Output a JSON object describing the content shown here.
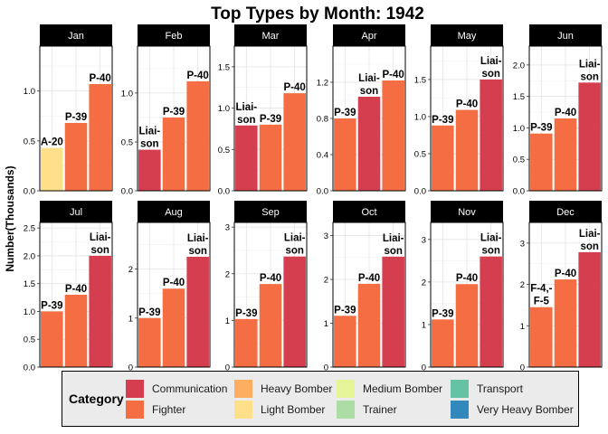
{
  "chart_data": {
    "type": "bar",
    "title": "Top Types by Month: 1942",
    "ylabel": "Number(Thousands)",
    "xlabel": "",
    "grid": true,
    "legend_position": "bottom",
    "legend": {
      "title": "Category",
      "entries": [
        {
          "name": "Communication",
          "color": "#d53e4f"
        },
        {
          "name": "Fighter",
          "color": "#f46d43"
        },
        {
          "name": "Heavy Bomber",
          "color": "#fdae61"
        },
        {
          "name": "Light Bomber",
          "color": "#fee08b"
        },
        {
          "name": "Medium Bomber",
          "color": "#e6f598"
        },
        {
          "name": "Trainer",
          "color": "#abdda4"
        },
        {
          "name": "Transport",
          "color": "#66c2a5"
        },
        {
          "name": "Very Heavy Bomber",
          "color": "#3288bd"
        }
      ]
    },
    "panels": [
      {
        "month": "Jan",
        "ylim": [
          0,
          1.45
        ],
        "ticks": [
          "0.0",
          "0.5",
          "1.0"
        ],
        "tick_values": [
          0,
          0.5,
          1.0
        ],
        "bars": [
          {
            "label": "A-20",
            "value": 0.43,
            "category": "Light Bomber"
          },
          {
            "label": "P-39",
            "value": 0.68,
            "category": "Fighter"
          },
          {
            "label": "P-40",
            "value": 1.07,
            "category": "Fighter"
          }
        ]
      },
      {
        "month": "Feb",
        "ylim": [
          0,
          1.48
        ],
        "ticks": [
          "0.0",
          "0.5",
          "1.0"
        ],
        "tick_values": [
          0,
          0.5,
          1.0
        ],
        "bars": [
          {
            "label": "Liai-\nson",
            "value": 0.42,
            "category": "Communication"
          },
          {
            "label": "P-39",
            "value": 0.75,
            "category": "Fighter"
          },
          {
            "label": "P-40",
            "value": 1.12,
            "category": "Fighter"
          }
        ]
      },
      {
        "month": "Mar",
        "ylim": [
          0,
          1.75
        ],
        "ticks": [
          "0.0",
          "0.5",
          "1.0",
          "1.5"
        ],
        "tick_values": [
          0,
          0.5,
          1.0,
          1.5
        ],
        "bars": [
          {
            "label": "Liai-\nson",
            "value": 0.79,
            "category": "Communication"
          },
          {
            "label": "P-39",
            "value": 0.8,
            "category": "Fighter"
          },
          {
            "label": "P-40",
            "value": 1.18,
            "category": "Fighter"
          }
        ]
      },
      {
        "month": "Apr",
        "ylim": [
          0,
          1.6
        ],
        "ticks": [
          "0.0",
          "0.4",
          "0.8",
          "1.2"
        ],
        "tick_values": [
          0,
          0.4,
          0.8,
          1.2
        ],
        "bars": [
          {
            "label": "P-39",
            "value": 0.8,
            "category": "Fighter"
          },
          {
            "label": "Liai-\nson",
            "value": 1.04,
            "category": "Communication"
          },
          {
            "label": "P-40",
            "value": 1.22,
            "category": "Fighter"
          }
        ]
      },
      {
        "month": "May",
        "ylim": [
          0,
          1.95
        ],
        "ticks": [
          "0.0",
          "0.5",
          "1.0",
          "1.5"
        ],
        "tick_values": [
          0,
          0.5,
          1.0,
          1.5
        ],
        "bars": [
          {
            "label": "P-39",
            "value": 0.88,
            "category": "Fighter"
          },
          {
            "label": "P-40",
            "value": 1.09,
            "category": "Fighter"
          },
          {
            "label": "Liai-\nson",
            "value": 1.5,
            "category": "Communication"
          }
        ]
      },
      {
        "month": "Jun",
        "ylim": [
          0,
          2.3
        ],
        "ticks": [
          "0.0",
          "0.5",
          "1.0",
          "1.5",
          "2.0"
        ],
        "tick_values": [
          0,
          0.5,
          1.0,
          1.5,
          2.0
        ],
        "bars": [
          {
            "label": "P-39",
            "value": 0.91,
            "category": "Fighter"
          },
          {
            "label": "P-40",
            "value": 1.15,
            "category": "Fighter"
          },
          {
            "label": "Liai-\nson",
            "value": 1.72,
            "category": "Communication"
          }
        ]
      },
      {
        "month": "Jul",
        "ylim": [
          0,
          2.6
        ],
        "ticks": [
          "0.0",
          "0.5",
          "1.0",
          "1.5",
          "2.0",
          "2.5"
        ],
        "tick_values": [
          0,
          0.5,
          1.0,
          1.5,
          2.0,
          2.5
        ],
        "bars": [
          {
            "label": "P-39",
            "value": 1.0,
            "category": "Fighter"
          },
          {
            "label": "P-40",
            "value": 1.3,
            "category": "Fighter"
          },
          {
            "label": "Liai-\nson",
            "value": 2.0,
            "category": "Communication"
          }
        ]
      },
      {
        "month": "Aug",
        "ylim": [
          0,
          2.95
        ],
        "ticks": [
          "0",
          "1",
          "2"
        ],
        "tick_values": [
          0,
          1,
          2
        ],
        "bars": [
          {
            "label": "P-39",
            "value": 1.0,
            "category": "Fighter"
          },
          {
            "label": "P-40",
            "value": 1.6,
            "category": "Fighter"
          },
          {
            "label": "Liai-\nson",
            "value": 2.25,
            "category": "Communication"
          }
        ]
      },
      {
        "month": "Sep",
        "ylim": [
          0,
          3.1
        ],
        "ticks": [
          "0",
          "1",
          "2",
          "3"
        ],
        "tick_values": [
          0,
          1,
          2,
          3
        ],
        "bars": [
          {
            "label": "P-39",
            "value": 1.03,
            "category": "Fighter"
          },
          {
            "label": "P-40",
            "value": 1.78,
            "category": "Fighter"
          },
          {
            "label": "Liai-\nson",
            "value": 2.37,
            "category": "Communication"
          }
        ]
      },
      {
        "month": "Oct",
        "ylim": [
          0,
          3.3
        ],
        "ticks": [
          "0",
          "1",
          "2",
          "3"
        ],
        "tick_values": [
          0,
          1,
          2,
          3
        ],
        "bars": [
          {
            "label": "P-39",
            "value": 1.17,
            "category": "Fighter"
          },
          {
            "label": "P-40",
            "value": 1.9,
            "category": "Fighter"
          },
          {
            "label": "Liai-\nson",
            "value": 2.52,
            "category": "Communication"
          }
        ]
      },
      {
        "month": "Nov",
        "ylim": [
          0,
          3.4
        ],
        "ticks": [
          "0",
          "1",
          "2",
          "3"
        ],
        "tick_values": [
          0,
          1,
          2,
          3
        ],
        "bars": [
          {
            "label": "P-39",
            "value": 1.12,
            "category": "Fighter"
          },
          {
            "label": "P-40",
            "value": 1.95,
            "category": "Fighter"
          },
          {
            "label": "Liai-\nson",
            "value": 2.6,
            "category": "Communication"
          }
        ]
      },
      {
        "month": "Dec",
        "ylim": [
          0,
          3.5
        ],
        "ticks": [
          "0",
          "1",
          "2",
          "3"
        ],
        "tick_values": [
          0,
          1,
          2,
          3
        ],
        "bars": [
          {
            "label": "F-4,-\nF-5",
            "value": 1.45,
            "category": "Fighter"
          },
          {
            "label": "P-40",
            "value": 2.12,
            "category": "Fighter"
          },
          {
            "label": "Liai-\nson",
            "value": 2.78,
            "category": "Communication"
          }
        ]
      }
    ]
  }
}
